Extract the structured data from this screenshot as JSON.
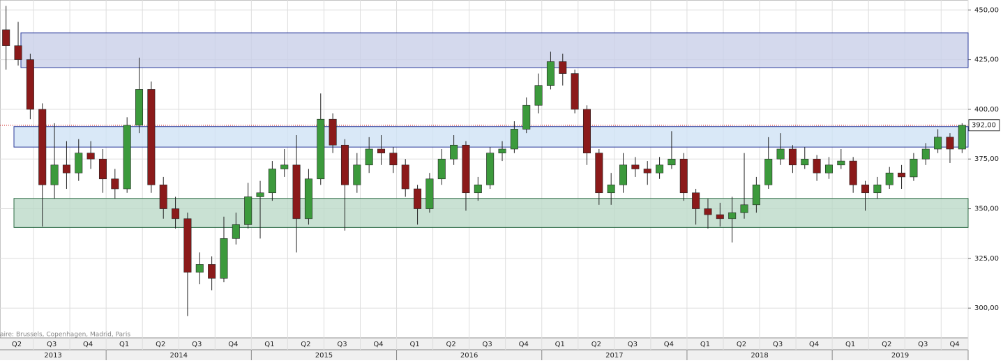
{
  "chart_data": {
    "type": "candlestick",
    "ylim": [
      285,
      455
    ],
    "yticks": [
      {
        "value": 300,
        "label": "300,00"
      },
      {
        "value": 325,
        "label": "325,00"
      },
      {
        "value": 350,
        "label": "350,00"
      },
      {
        "value": 375,
        "label": "375,00"
      },
      {
        "value": 400,
        "label": "400,00"
      },
      {
        "value": 425,
        "label": "425,00"
      },
      {
        "value": 450,
        "label": "450,00"
      }
    ],
    "quarters": [
      "Q2",
      "Q3",
      "Q4",
      "Q1",
      "Q2",
      "Q3",
      "Q4",
      "Q1",
      "Q2",
      "Q3",
      "Q4",
      "Q1",
      "Q2",
      "Q3",
      "Q4",
      "Q1",
      "Q2",
      "Q3",
      "Q4",
      "Q1",
      "Q2",
      "Q3",
      "Q4",
      "Q1",
      "Q2",
      "Q3",
      "Q4"
    ],
    "years": [
      "2013",
      "2014",
      "2015",
      "2016",
      "2017",
      "2018",
      "2019"
    ],
    "up_color": "#3c9a3c",
    "down_color": "#8b1a1a",
    "candles": [
      [
        440,
        452,
        420,
        432
      ],
      [
        432,
        444,
        422,
        425
      ],
      [
        425,
        428,
        395,
        400
      ],
      [
        400,
        403,
        341,
        362
      ],
      [
        362,
        393,
        355,
        372
      ],
      [
        372,
        384,
        360,
        368
      ],
      [
        368,
        385,
        364,
        378
      ],
      [
        378,
        384,
        370,
        375
      ],
      [
        375,
        380,
        358,
        365
      ],
      [
        365,
        370,
        355,
        360
      ],
      [
        360,
        396,
        358,
        392
      ],
      [
        392,
        426,
        388,
        410
      ],
      [
        410,
        414,
        358,
        362
      ],
      [
        362,
        366,
        345,
        350
      ],
      [
        350,
        356,
        340,
        345
      ],
      [
        345,
        348,
        296,
        318
      ],
      [
        318,
        328,
        312,
        322
      ],
      [
        322,
        326,
        309,
        315
      ],
      [
        315,
        346,
        313,
        335
      ],
      [
        335,
        348,
        332,
        342
      ],
      [
        342,
        363,
        340,
        356
      ],
      [
        356,
        364,
        335,
        358
      ],
      [
        358,
        374,
        354,
        370
      ],
      [
        370,
        380,
        366,
        372
      ],
      [
        372,
        387,
        328,
        345
      ],
      [
        345,
        370,
        342,
        365
      ],
      [
        365,
        408,
        362,
        395
      ],
      [
        395,
        398,
        378,
        382
      ],
      [
        382,
        385,
        339,
        362
      ],
      [
        362,
        378,
        358,
        372
      ],
      [
        372,
        386,
        368,
        380
      ],
      [
        380,
        387,
        372,
        378
      ],
      [
        378,
        381,
        368,
        372
      ],
      [
        372,
        375,
        356,
        360
      ],
      [
        360,
        362,
        342,
        350
      ],
      [
        350,
        368,
        348,
        365
      ],
      [
        365,
        380,
        362,
        375
      ],
      [
        375,
        387,
        372,
        382
      ],
      [
        382,
        384,
        349,
        358
      ],
      [
        358,
        366,
        354,
        362
      ],
      [
        362,
        381,
        360,
        378
      ],
      [
        378,
        384,
        374,
        380
      ],
      [
        380,
        394,
        378,
        390
      ],
      [
        390,
        406,
        388,
        402
      ],
      [
        402,
        418,
        398,
        412
      ],
      [
        412,
        429,
        410,
        424
      ],
      [
        424,
        428,
        412,
        418
      ],
      [
        418,
        420,
        398,
        400
      ],
      [
        400,
        402,
        372,
        378
      ],
      [
        378,
        380,
        352,
        358
      ],
      [
        358,
        368,
        352,
        362
      ],
      [
        362,
        378,
        358,
        372
      ],
      [
        372,
        376,
        366,
        370
      ],
      [
        370,
        374,
        362,
        368
      ],
      [
        368,
        376,
        365,
        372
      ],
      [
        372,
        389,
        370,
        375
      ],
      [
        375,
        378,
        354,
        358
      ],
      [
        358,
        360,
        342,
        350
      ],
      [
        350,
        355,
        340,
        347
      ],
      [
        347,
        353,
        341,
        345
      ],
      [
        345,
        356,
        333,
        348
      ],
      [
        348,
        378,
        345,
        352
      ],
      [
        352,
        366,
        348,
        362
      ],
      [
        362,
        386,
        360,
        375
      ],
      [
        375,
        388,
        372,
        380
      ],
      [
        380,
        382,
        368,
        372
      ],
      [
        372,
        381,
        370,
        375
      ],
      [
        375,
        377,
        364,
        368
      ],
      [
        368,
        376,
        365,
        372
      ],
      [
        372,
        380,
        370,
        374
      ],
      [
        374,
        376,
        358,
        362
      ],
      [
        362,
        364,
        349,
        358
      ],
      [
        358,
        366,
        355,
        362
      ],
      [
        362,
        371,
        360,
        368
      ],
      [
        368,
        372,
        360,
        366
      ],
      [
        366,
        378,
        364,
        375
      ],
      [
        375,
        383,
        372,
        380
      ],
      [
        380,
        390,
        378,
        386
      ],
      [
        386,
        388,
        373,
        380
      ],
      [
        380,
        393,
        378,
        392
      ]
    ],
    "zones": [
      {
        "low": 421,
        "high": 438.5,
        "color": "#c9cfe8"
      },
      {
        "low": 381,
        "high": 391.3,
        "color": "#cfe2f5"
      },
      {
        "low": 340.6,
        "high": 355.2,
        "color": "#bcd9c8"
      }
    ],
    "last_price": {
      "value": 392,
      "label": "392,00"
    },
    "footer": "aire: Brussels, Copenhagen, Madrid, Paris"
  }
}
